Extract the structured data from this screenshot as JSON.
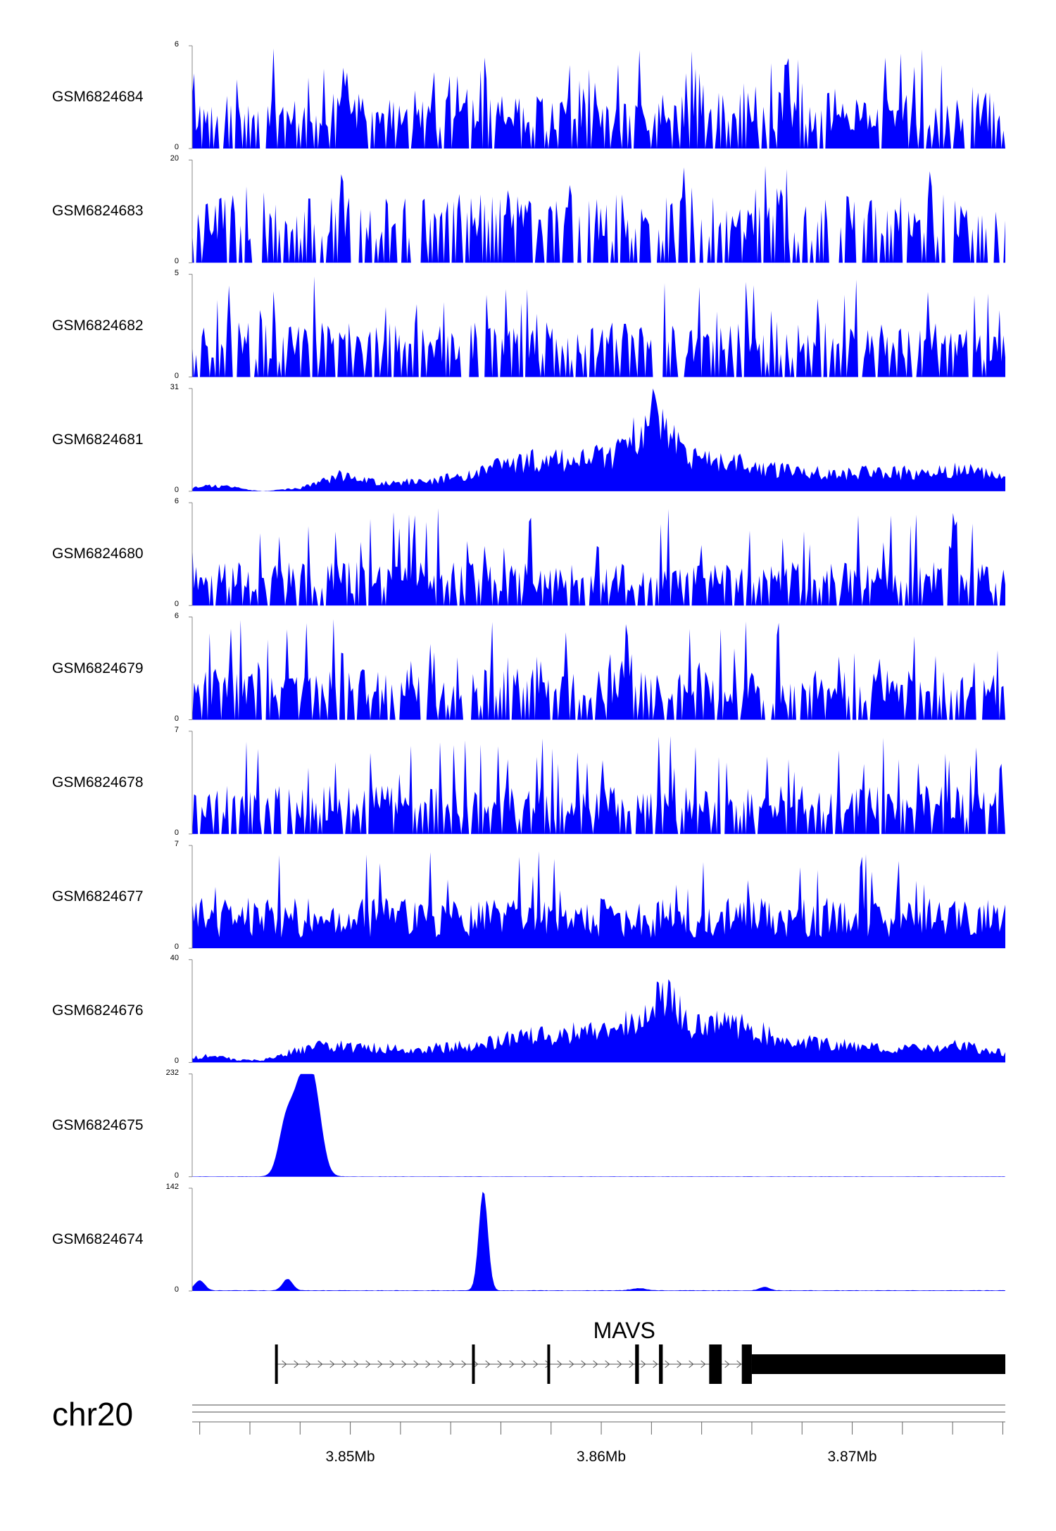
{
  "chart_data": {
    "type": "area",
    "genome_browser": true,
    "chromosome": "chr20",
    "fill_color": "#0000ff",
    "x_range_mb": [
      3.8437,
      3.8761
    ],
    "x_ticks_mb": [
      3.844,
      3.846,
      3.848,
      3.85,
      3.852,
      3.854,
      3.856,
      3.858,
      3.86,
      3.862,
      3.864,
      3.866,
      3.868,
      3.87,
      3.872,
      3.874,
      3.876
    ],
    "x_tick_labels": [
      {
        "value": 3.85,
        "label": "3.85Mb"
      },
      {
        "value": 3.86,
        "label": "3.86Mb"
      },
      {
        "value": 3.87,
        "label": "3.87Mb"
      }
    ],
    "tracks": [
      {
        "name": "GSM6824684",
        "ymin": 0,
        "ymax": 6,
        "ymin_label": "0",
        "ymax_label": "6",
        "kind": "spiky",
        "base": 2.2
      },
      {
        "name": "GSM6824683",
        "ymin": 0,
        "ymax": 20,
        "ymin_label": "0",
        "ymax_label": "20",
        "kind": "sparse",
        "base": 7
      },
      {
        "name": "GSM6824682",
        "ymin": 0,
        "ymax": 5,
        "ymin_label": "0",
        "ymax_label": "5",
        "kind": "spiky",
        "base": 1.8
      },
      {
        "name": "GSM6824681",
        "ymin": 0,
        "ymax": 31,
        "ymin_label": "0",
        "ymax_label": "31",
        "kind": "broad",
        "profile": [
          [
            3.8437,
            1
          ],
          [
            3.8445,
            2
          ],
          [
            3.8455,
            1
          ],
          [
            3.8465,
            0
          ],
          [
            3.848,
            1
          ],
          [
            3.8495,
            5
          ],
          [
            3.851,
            3
          ],
          [
            3.853,
            3
          ],
          [
            3.855,
            6
          ],
          [
            3.857,
            10
          ],
          [
            3.859,
            10
          ],
          [
            3.8605,
            12
          ],
          [
            3.8615,
            20
          ],
          [
            3.8623,
            28
          ],
          [
            3.8635,
            12
          ],
          [
            3.866,
            8
          ],
          [
            3.868,
            6
          ],
          [
            3.872,
            6
          ],
          [
            3.8745,
            7
          ],
          [
            3.8761,
            5
          ]
        ]
      },
      {
        "name": "GSM6824680",
        "ymin": 0,
        "ymax": 6,
        "ymin_label": "0",
        "ymax_label": "6",
        "kind": "spiky",
        "base": 1.7
      },
      {
        "name": "GSM6824679",
        "ymin": 0,
        "ymax": 6,
        "ymin_label": "0",
        "ymax_label": "6",
        "kind": "spiky",
        "base": 2.0
      },
      {
        "name": "GSM6824678",
        "ymin": 0,
        "ymax": 7,
        "ymin_label": "0",
        "ymax_label": "7",
        "kind": "spiky",
        "base": 2.2
      },
      {
        "name": "GSM6824677",
        "ymin": 0,
        "ymax": 7,
        "ymin_label": "0",
        "ymax_label": "7",
        "kind": "dense",
        "base": 2.3
      },
      {
        "name": "GSM6824676",
        "ymin": 0,
        "ymax": 40,
        "ymin_label": "0",
        "ymax_label": "40",
        "kind": "broad",
        "profile": [
          [
            3.8437,
            2
          ],
          [
            3.8445,
            3
          ],
          [
            3.8455,
            1
          ],
          [
            3.8465,
            1
          ],
          [
            3.848,
            6
          ],
          [
            3.8495,
            7
          ],
          [
            3.851,
            6
          ],
          [
            3.853,
            6
          ],
          [
            3.855,
            7
          ],
          [
            3.857,
            11
          ],
          [
            3.8585,
            12
          ],
          [
            3.8605,
            14
          ],
          [
            3.8615,
            20
          ],
          [
            3.8624,
            34
          ],
          [
            3.8635,
            14
          ],
          [
            3.865,
            17
          ],
          [
            3.8665,
            12
          ],
          [
            3.8685,
            8
          ],
          [
            3.8705,
            7
          ],
          [
            3.8725,
            6
          ],
          [
            3.8745,
            7
          ],
          [
            3.8761,
            4
          ]
        ]
      },
      {
        "name": "GSM6824675",
        "ymin": 0,
        "ymax": 232,
        "ymin_label": "0",
        "ymax_label": "232",
        "kind": "peaks",
        "peaks": [
          [
            3.8474,
            95,
            0.00028
          ],
          [
            3.8481,
            215,
            0.0004
          ],
          [
            3.8486,
            120,
            0.0003
          ]
        ]
      },
      {
        "name": "GSM6824674",
        "ymin": 0,
        "ymax": 142,
        "ymin_label": "0",
        "ymax_label": "142",
        "kind": "peaks",
        "peaks": [
          [
            3.8553,
            138,
            0.00018
          ],
          [
            3.844,
            14,
            0.0002
          ],
          [
            3.8475,
            16,
            0.0002
          ],
          [
            3.8615,
            3,
            0.0003
          ],
          [
            3.8665,
            5,
            0.0002
          ]
        ]
      }
    ],
    "gene": {
      "name": "MAVS",
      "strand": "+",
      "start_mb": 3.847,
      "end_mb": 3.8761,
      "exons_mb": [
        [
          3.847,
          3.84705
        ],
        [
          3.85485,
          3.85495
        ],
        [
          3.85785,
          3.85795
        ],
        [
          3.86135,
          3.8615
        ],
        [
          3.8623,
          3.86245
        ],
        [
          3.8643,
          3.8648
        ],
        [
          3.8656,
          3.866
        ],
        [
          3.866,
          3.8761
        ]
      ],
      "thick_from_index": 7
    }
  }
}
